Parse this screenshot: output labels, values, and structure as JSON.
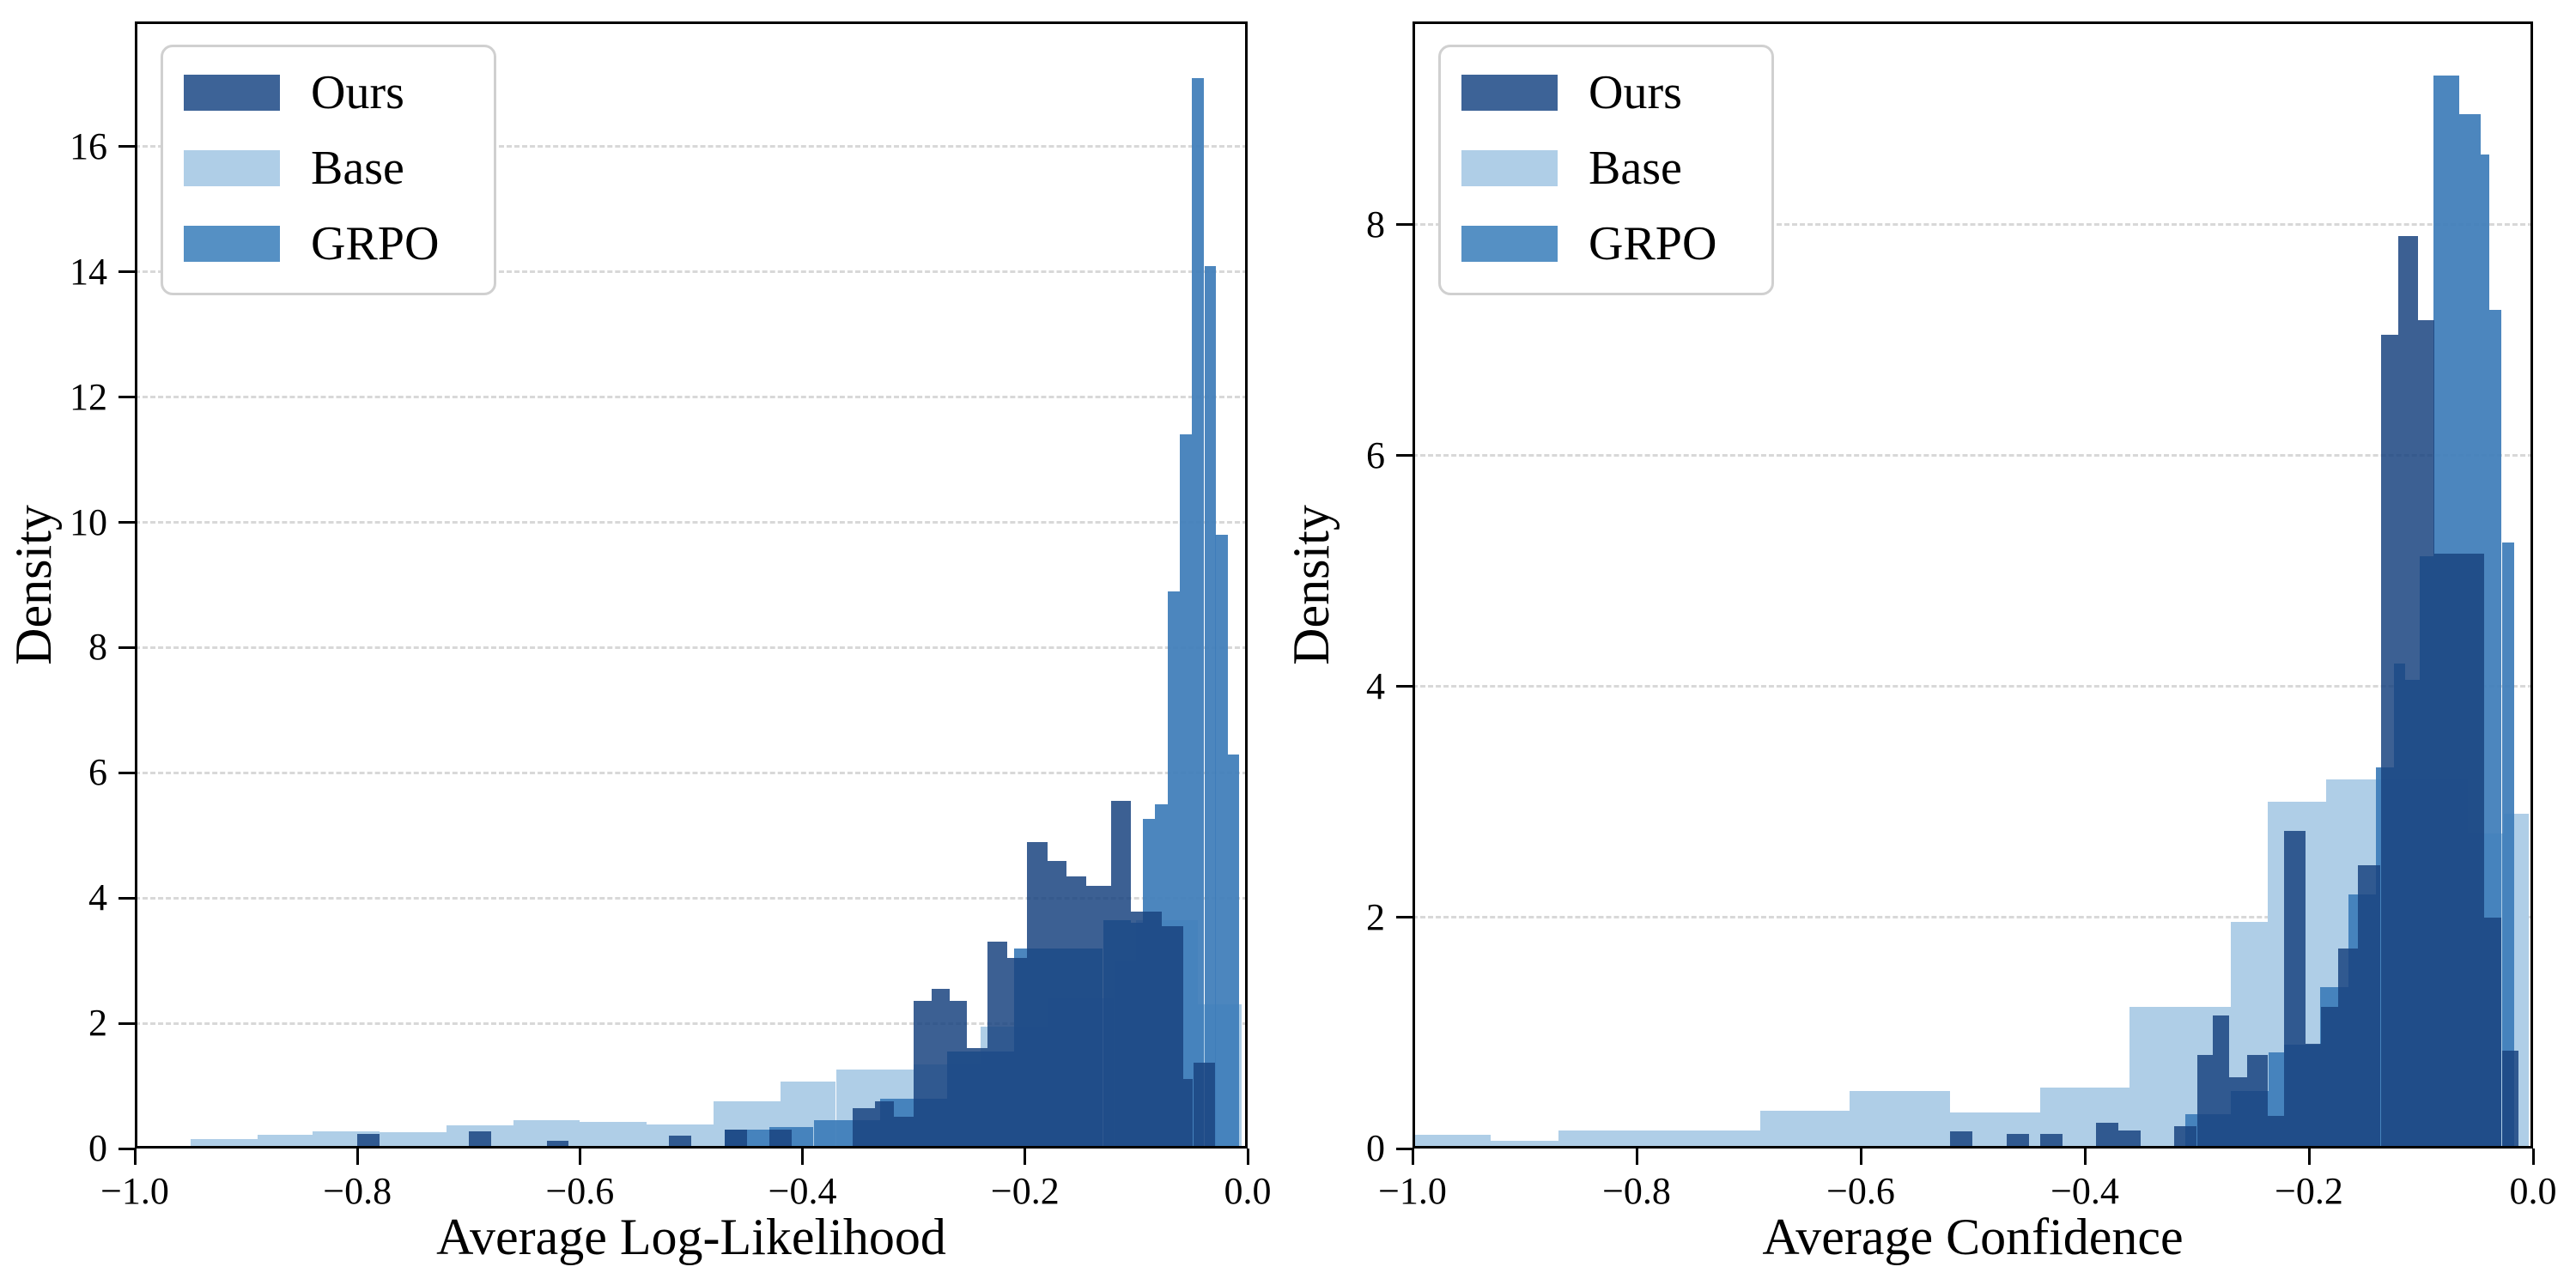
{
  "figure": {
    "background": "#ffffff"
  },
  "legend": {
    "labels": [
      "Ours",
      "Base",
      "GRPO"
    ],
    "position": "upper-left"
  },
  "series_colors": {
    "ours": "#3D6397",
    "base": "#AFCEE7",
    "grpo": "#5590C4"
  },
  "chart_data": [
    {
      "type": "bar",
      "subtype": "overlaid-histogram",
      "title": "",
      "xlabel": "Average Log-Likelihood",
      "ylabel": "Density",
      "xlim": [
        -1.0,
        0.0
      ],
      "ylim": [
        0,
        18
      ],
      "xticks": [
        -1.0,
        -0.8,
        -0.6,
        -0.4,
        -0.2,
        0.0
      ],
      "yticks": [
        0,
        2,
        4,
        6,
        8,
        10,
        12,
        14,
        16
      ],
      "grid": "horizontal-dashed",
      "legend_position": "upper-left",
      "series": [
        {
          "name": "Base",
          "fill": "rgba(175,206,231,1)",
          "bins": [
            [
              -0.95,
              -0.89,
              0.15
            ],
            [
              -0.89,
              -0.84,
              0.22
            ],
            [
              -0.84,
              -0.78,
              0.28
            ],
            [
              -0.78,
              -0.72,
              0.26
            ],
            [
              -0.72,
              -0.66,
              0.37
            ],
            [
              -0.66,
              -0.6,
              0.45
            ],
            [
              -0.6,
              -0.54,
              0.42
            ],
            [
              -0.54,
              -0.48,
              0.38
            ],
            [
              -0.48,
              -0.42,
              0.75
            ],
            [
              -0.42,
              -0.37,
              1.07
            ],
            [
              -0.37,
              -0.3,
              1.26
            ],
            [
              -0.3,
              -0.24,
              1.35
            ],
            [
              -0.24,
              -0.18,
              1.95
            ],
            [
              -0.18,
              -0.12,
              2.4
            ],
            [
              -0.12,
              -0.1,
              3.0
            ],
            [
              -0.1,
              -0.045,
              3.65
            ],
            [
              -0.045,
              -0.005,
              2.3
            ]
          ]
        },
        {
          "name": "GRPO",
          "fill": "rgba(62,125,185,0.93)",
          "bins": [
            [
              -0.47,
              -0.43,
              0.3
            ],
            [
              -0.43,
              -0.39,
              0.35
            ],
            [
              -0.39,
              -0.33,
              0.45
            ],
            [
              -0.33,
              -0.27,
              0.8
            ],
            [
              -0.27,
              -0.21,
              1.55
            ],
            [
              -0.21,
              -0.13,
              3.2
            ],
            [
              -0.13,
              -0.105,
              3.65
            ],
            [
              -0.105,
              -0.094,
              3.6
            ],
            [
              -0.094,
              -0.083,
              5.26
            ],
            [
              -0.083,
              -0.072,
              5.5
            ],
            [
              -0.072,
              -0.061,
              8.9
            ],
            [
              -0.061,
              -0.05,
              11.4
            ],
            [
              -0.05,
              -0.039,
              17.1
            ],
            [
              -0.039,
              -0.029,
              14.1
            ],
            [
              -0.029,
              -0.018,
              9.8
            ],
            [
              -0.018,
              -0.008,
              6.3
            ]
          ]
        },
        {
          "name": "Ours",
          "fill": "rgba(26,68,128,0.85)",
          "bins": [
            [
              -0.8,
              -0.78,
              0.23
            ],
            [
              -0.7,
              -0.68,
              0.28
            ],
            [
              -0.63,
              -0.61,
              0.12
            ],
            [
              -0.52,
              -0.5,
              0.2
            ],
            [
              -0.47,
              -0.45,
              0.3
            ],
            [
              -0.43,
              -0.41,
              0.3
            ],
            [
              -0.355,
              -0.335,
              0.64
            ],
            [
              -0.335,
              -0.318,
              0.75
            ],
            [
              -0.318,
              -0.3,
              0.51
            ],
            [
              -0.3,
              -0.284,
              2.36
            ],
            [
              -0.284,
              -0.268,
              2.55
            ],
            [
              -0.268,
              -0.252,
              2.36
            ],
            [
              -0.252,
              -0.234,
              1.6
            ],
            [
              -0.234,
              -0.216,
              3.3
            ],
            [
              -0.216,
              -0.198,
              3.05
            ],
            [
              -0.198,
              -0.18,
              4.9
            ],
            [
              -0.18,
              -0.163,
              4.6
            ],
            [
              -0.163,
              -0.145,
              4.34
            ],
            [
              -0.145,
              -0.123,
              4.2
            ],
            [
              -0.123,
              -0.105,
              5.55
            ],
            [
              -0.105,
              -0.077,
              3.78
            ],
            [
              -0.077,
              -0.058,
              3.55
            ],
            [
              -0.058,
              -0.049,
              1.11
            ],
            [
              -0.049,
              -0.029,
              1.37
            ]
          ]
        }
      ]
    },
    {
      "type": "bar",
      "subtype": "overlaid-histogram",
      "title": "",
      "xlabel": "Average Confidence",
      "ylabel": "Density",
      "xlim": [
        -1.0,
        0.0
      ],
      "ylim": [
        0,
        9.76
      ],
      "xticks": [
        -1.0,
        -0.8,
        -0.6,
        -0.4,
        -0.2,
        0.0
      ],
      "yticks": [
        0,
        2,
        4,
        6,
        8
      ],
      "grid": "horizontal-dashed",
      "legend_position": "upper-left",
      "series": [
        {
          "name": "Base",
          "fill": "rgba(175,206,231,1)",
          "bins": [
            [
              -1.0,
              -0.93,
              0.12
            ],
            [
              -0.93,
              -0.87,
              0.07
            ],
            [
              -0.87,
              -0.69,
              0.16
            ],
            [
              -0.69,
              -0.61,
              0.33
            ],
            [
              -0.61,
              -0.52,
              0.5
            ],
            [
              -0.52,
              -0.44,
              0.31
            ],
            [
              -0.44,
              -0.36,
              0.53
            ],
            [
              -0.36,
              -0.27,
              1.23
            ],
            [
              -0.27,
              -0.237,
              1.96
            ],
            [
              -0.237,
              -0.185,
              3.0
            ],
            [
              -0.185,
              -0.058,
              3.2
            ],
            [
              -0.058,
              -0.026,
              2.73
            ],
            [
              -0.026,
              -0.004,
              2.9
            ]
          ]
        },
        {
          "name": "GRPO",
          "fill": "rgba(62,125,185,0.93)",
          "bins": [
            [
              -0.31,
              -0.27,
              0.3
            ],
            [
              -0.27,
              -0.236,
              0.5
            ],
            [
              -0.236,
              -0.222,
              0.83
            ],
            [
              -0.222,
              -0.19,
              0.9
            ],
            [
              -0.19,
              -0.165,
              1.4
            ],
            [
              -0.165,
              -0.14,
              2.2
            ],
            [
              -0.14,
              -0.124,
              3.3
            ],
            [
              -0.124,
              -0.114,
              4.2
            ],
            [
              -0.114,
              -0.101,
              4.06
            ],
            [
              -0.101,
              -0.089,
              5.13
            ],
            [
              -0.089,
              -0.066,
              9.29
            ],
            [
              -0.066,
              -0.047,
              8.96
            ],
            [
              -0.047,
              -0.039,
              8.61
            ],
            [
              -0.039,
              -0.028,
              7.26
            ],
            [
              -0.028,
              -0.017,
              5.25
            ]
          ]
        },
        {
          "name": "Ours",
          "fill": "rgba(26,68,128,0.85)",
          "bins": [
            [
              -0.52,
              -0.5,
              0.15
            ],
            [
              -0.47,
              -0.45,
              0.13
            ],
            [
              -0.44,
              -0.42,
              0.13
            ],
            [
              -0.39,
              -0.37,
              0.22
            ],
            [
              -0.37,
              -0.35,
              0.16
            ],
            [
              -0.32,
              -0.3,
              0.19
            ],
            [
              -0.3,
              -0.286,
              0.81
            ],
            [
              -0.286,
              -0.271,
              1.15
            ],
            [
              -0.271,
              -0.255,
              0.62
            ],
            [
              -0.255,
              -0.237,
              0.81
            ],
            [
              -0.237,
              -0.222,
              0.28
            ],
            [
              -0.222,
              -0.203,
              2.75
            ],
            [
              -0.203,
              -0.189,
              0.91
            ],
            [
              -0.189,
              -0.174,
              1.23
            ],
            [
              -0.174,
              -0.156,
              1.73
            ],
            [
              -0.156,
              -0.136,
              2.45
            ],
            [
              -0.136,
              -0.12,
              7.05
            ],
            [
              -0.12,
              -0.103,
              7.9
            ],
            [
              -0.103,
              -0.088,
              7.17
            ],
            [
              -0.088,
              -0.044,
              5.15
            ],
            [
              -0.044,
              -0.028,
              2.0
            ],
            [
              -0.028,
              -0.013,
              0.85
            ]
          ]
        }
      ]
    }
  ]
}
